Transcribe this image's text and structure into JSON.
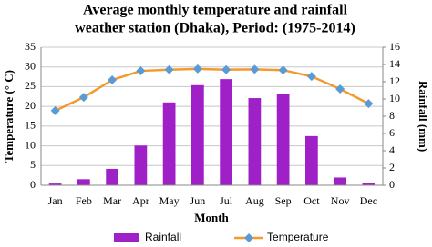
{
  "chart_data": {
    "type": "bar-line",
    "title": [
      "Average monthly temperature and rainfall",
      "weather station (Dhaka), Period: (1975-2014)"
    ],
    "x_label": "Month",
    "y_label": "Temperature (° C)",
    "y2_label": "Rainfall (mm)",
    "categories": [
      "Jan",
      "Feb",
      "Mar",
      "Apr",
      "May",
      "Jun",
      "Jul",
      "Aug",
      "Sep",
      "Oct",
      "Nov",
      "Dec"
    ],
    "series": [
      {
        "name": "Rainfall",
        "type": "bar",
        "axis": "y2",
        "color": "#a020c8",
        "values": [
          0.2,
          0.7,
          1.9,
          4.6,
          9.6,
          11.6,
          12.3,
          10.1,
          10.6,
          5.7,
          0.9,
          0.3
        ]
      },
      {
        "name": "Temperature",
        "type": "line",
        "axis": "y",
        "color": "#f39a2e",
        "marker_color": "#5b9bd5",
        "values": [
          18.9,
          22.3,
          26.7,
          29.0,
          29.3,
          29.5,
          29.3,
          29.4,
          29.2,
          27.6,
          24.4,
          20.7
        ]
      }
    ],
    "ylim": [
      0,
      35
    ],
    "yticks": [
      0,
      5,
      10,
      15,
      20,
      25,
      30,
      35
    ],
    "y2lim": [
      0,
      16
    ],
    "y2ticks": [
      0,
      2,
      4,
      6,
      8,
      10,
      12,
      14,
      16
    ],
    "grid": true,
    "legend": "bottom"
  }
}
